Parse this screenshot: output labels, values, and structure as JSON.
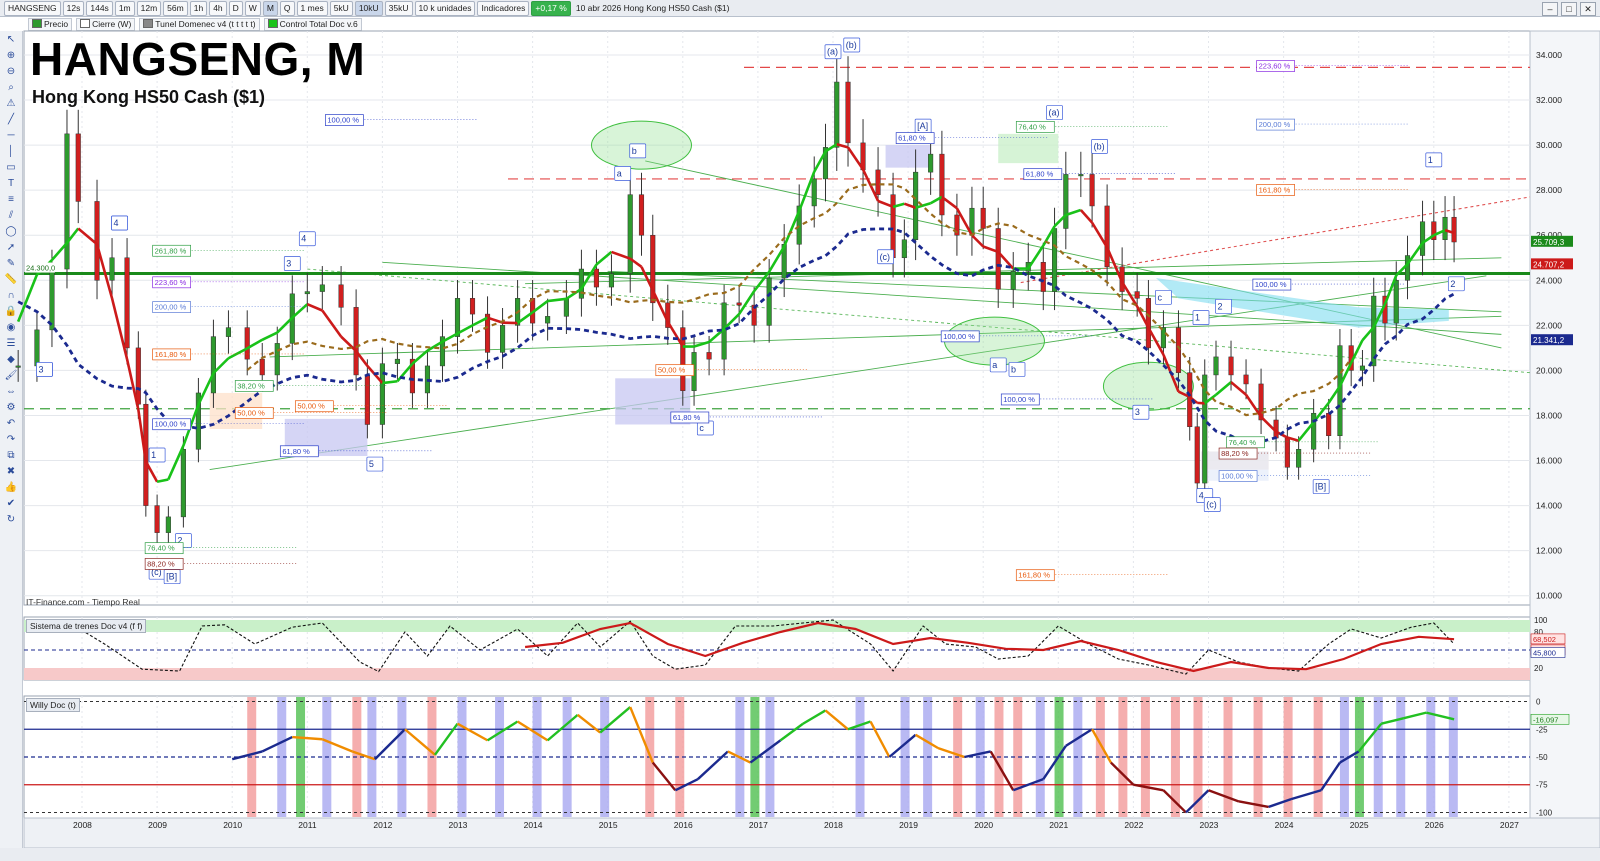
{
  "toolbar": {
    "symbol": "HANGSENG",
    "intervals": [
      "12s",
      "144s",
      "1m",
      "12m",
      "56m",
      "1h",
      "4h",
      "D",
      "W",
      "M",
      "Q"
    ],
    "active_interval": "M",
    "range": "1 mes",
    "units": [
      "5kU",
      "10kU",
      "35kU"
    ],
    "active_unit": "10kU",
    "unit_select": "10 k unidades",
    "indicators_label": "Indicadores",
    "change": "+0,17 %",
    "info": "10 abr 2026 Hong Kong HS50 Cash ($1)"
  },
  "legend": [
    "Precio",
    "Cierre (W)",
    "Tunel Domenec v4 (t t t t t)",
    "Control Total Doc v.6"
  ],
  "header": {
    "title": "HANGSENG, M",
    "subtitle": "Hong Kong HS50 Cash ($1)",
    "footer": "IT-Finance.com - Tiempo Real"
  },
  "panels": {
    "osc1_name": "Sistema de trenes Doc v4 (f f)",
    "osc2_name": "Willy Doc (t)"
  },
  "colors": {
    "up_candle": "#2e9a2e",
    "down_candle": "#d11f1f",
    "bull_line": "#19c219",
    "bear_line": "#cc1a1a",
    "blue_dash": "#1b2a8f",
    "brown_dash": "#9a6b1c",
    "main_level": "#1a8a1a",
    "osc_red_zone": "#f7c9c9",
    "osc_green_zone": "#c9f0c9",
    "willy_red": "#f29a9a",
    "willy_blue": "#a7a7f0",
    "willy_green": "#4fbf4f"
  },
  "chart_data": {
    "type": "candlestick",
    "title": "HANGSENG, M",
    "subtitle": "Hong Kong HS50 Cash ($1)",
    "xlabel": "",
    "ylabel": "",
    "ylim": [
      9300,
      35200
    ],
    "x_ticks": [
      2008,
      2009,
      2010,
      2011,
      2012,
      2013,
      2014,
      2015,
      2016,
      2017,
      2018,
      2019,
      2020,
      2021,
      2022,
      2023,
      2024,
      2025,
      2026,
      2027
    ],
    "y_ticks": [
      10000,
      12000,
      14000,
      16000,
      18000,
      20000,
      22000,
      24000,
      26000,
      28000,
      30000,
      32000,
      34000
    ],
    "y_tick_labels": [
      "10.000",
      "12.000",
      "14.000",
      "16.000",
      "18.000",
      "20.000",
      "22.000",
      "24.000",
      "26.000",
      "28.000",
      "30.000",
      "32.000",
      "34.000"
    ],
    "price_close_points": [
      [
        2007.15,
        20200
      ],
      [
        2007.4,
        21800
      ],
      [
        2007.6,
        24500
      ],
      [
        2007.8,
        30500
      ],
      [
        2007.95,
        27500
      ],
      [
        2008.2,
        24000
      ],
      [
        2008.4,
        25000
      ],
      [
        2008.6,
        21000
      ],
      [
        2008.75,
        18500
      ],
      [
        2008.85,
        14000
      ],
      [
        2009.0,
        12800
      ],
      [
        2009.15,
        13500
      ],
      [
        2009.35,
        16500
      ],
      [
        2009.55,
        19000
      ],
      [
        2009.75,
        21500
      ],
      [
        2009.95,
        21900
      ],
      [
        2010.2,
        20500
      ],
      [
        2010.4,
        19800
      ],
      [
        2010.6,
        21200
      ],
      [
        2010.8,
        23400
      ],
      [
        2011.0,
        23500
      ],
      [
        2011.2,
        23800
      ],
      [
        2011.45,
        22800
      ],
      [
        2011.65,
        19800
      ],
      [
        2011.8,
        17600
      ],
      [
        2012.0,
        20300
      ],
      [
        2012.2,
        20500
      ],
      [
        2012.4,
        19000
      ],
      [
        2012.6,
        20200
      ],
      [
        2012.8,
        21500
      ],
      [
        2013.0,
        23200
      ],
      [
        2013.2,
        22500
      ],
      [
        2013.4,
        20800
      ],
      [
        2013.6,
        22000
      ],
      [
        2013.8,
        23200
      ],
      [
        2014.0,
        22100
      ],
      [
        2014.2,
        22400
      ],
      [
        2014.45,
        23200
      ],
      [
        2014.65,
        24500
      ],
      [
        2014.85,
        23700
      ],
      [
        2015.05,
        24300
      ],
      [
        2015.3,
        27800
      ],
      [
        2015.45,
        26000
      ],
      [
        2015.6,
        23000
      ],
      [
        2015.8,
        21900
      ],
      [
        2016.0,
        19100
      ],
      [
        2016.15,
        20800
      ],
      [
        2016.35,
        20500
      ],
      [
        2016.55,
        23000
      ],
      [
        2016.75,
        22900
      ],
      [
        2016.95,
        22000
      ],
      [
        2017.15,
        24100
      ],
      [
        2017.35,
        25600
      ],
      [
        2017.55,
        27300
      ],
      [
        2017.75,
        28500
      ],
      [
        2017.9,
        29900
      ],
      [
        2018.05,
        32800
      ],
      [
        2018.2,
        30100
      ],
      [
        2018.4,
        28900
      ],
      [
        2018.6,
        27800
      ],
      [
        2018.8,
        25000
      ],
      [
        2018.95,
        25800
      ],
      [
        2019.1,
        28800
      ],
      [
        2019.3,
        29600
      ],
      [
        2019.45,
        26900
      ],
      [
        2019.65,
        26000
      ],
      [
        2019.85,
        27200
      ],
      [
        2020.0,
        26300
      ],
      [
        2020.2,
        23600
      ],
      [
        2020.4,
        24400
      ],
      [
        2020.6,
        24800
      ],
      [
        2020.8,
        23500
      ],
      [
        2020.95,
        26300
      ],
      [
        2021.1,
        28700
      ],
      [
        2021.3,
        28700
      ],
      [
        2021.45,
        27300
      ],
      [
        2021.65,
        24600
      ],
      [
        2021.85,
        23500
      ],
      [
        2022.05,
        23200
      ],
      [
        2022.2,
        21000
      ],
      [
        2022.4,
        21900
      ],
      [
        2022.6,
        19900
      ],
      [
        2022.75,
        17500
      ],
      [
        2022.85,
        15000
      ],
      [
        2022.95,
        19800
      ],
      [
        2023.1,
        20600
      ],
      [
        2023.3,
        19800
      ],
      [
        2023.5,
        19400
      ],
      [
        2023.7,
        17800
      ],
      [
        2023.9,
        17000
      ],
      [
        2024.05,
        15700
      ],
      [
        2024.2,
        16500
      ],
      [
        2024.4,
        18100
      ],
      [
        2024.6,
        17100
      ],
      [
        2024.75,
        21100
      ],
      [
        2024.9,
        20000
      ],
      [
        2025.05,
        20200
      ],
      [
        2025.2,
        23300
      ],
      [
        2025.35,
        22100
      ],
      [
        2025.5,
        24000
      ],
      [
        2025.65,
        25100
      ],
      [
        2025.85,
        26600
      ],
      [
        2026.0,
        25800
      ],
      [
        2026.15,
        26800
      ],
      [
        2026.27,
        25700
      ]
    ],
    "price_labels": [
      "25.709,3",
      "24.707,2",
      "21.341,2",
      "24.300,0"
    ],
    "osc1": {
      "name": "Sistema de trenes Doc v4 (f f)",
      "ylim": [
        0,
        105
      ],
      "y_ticks": [
        100,
        80,
        50,
        20
      ],
      "y_tick_labels": [
        "100",
        "80",
        "50",
        "20"
      ],
      "value_labels": [
        "68,502",
        "50,211",
        "45,800"
      ],
      "series": [
        {
          "name": "fast",
          "values": [
            [
              2007.3,
              88
            ],
            [
              2007.8,
              98
            ],
            [
              2008.3,
              60
            ],
            [
              2008.8,
              18
            ],
            [
              2009.3,
              15
            ],
            [
              2009.6,
              90
            ],
            [
              2009.9,
              92
            ],
            [
              2010.3,
              60
            ],
            [
              2010.8,
              88
            ],
            [
              2011.2,
              95
            ],
            [
              2011.7,
              30
            ],
            [
              2011.95,
              14
            ],
            [
              2012.3,
              80
            ],
            [
              2012.6,
              40
            ],
            [
              2012.9,
              90
            ],
            [
              2013.3,
              50
            ],
            [
              2013.8,
              85
            ],
            [
              2014.2,
              40
            ],
            [
              2014.6,
              95
            ],
            [
              2014.9,
              55
            ],
            [
              2015.3,
              98
            ],
            [
              2015.6,
              40
            ],
            [
              2015.9,
              18
            ],
            [
              2016.3,
              25
            ],
            [
              2016.7,
              90
            ],
            [
              2017.2,
              90
            ],
            [
              2017.6,
              95
            ],
            [
              2018.0,
              100
            ],
            [
              2018.5,
              60
            ],
            [
              2018.8,
              15
            ],
            [
              2019.2,
              90
            ],
            [
              2019.5,
              60
            ],
            [
              2019.9,
              55
            ],
            [
              2020.2,
              35
            ],
            [
              2020.6,
              40
            ],
            [
              2021.0,
              90
            ],
            [
              2021.4,
              60
            ],
            [
              2021.8,
              35
            ],
            [
              2022.2,
              25
            ],
            [
              2022.7,
              10
            ],
            [
              2023.0,
              50
            ],
            [
              2023.4,
              30
            ],
            [
              2023.8,
              20
            ],
            [
              2024.2,
              15
            ],
            [
              2024.6,
              60
            ],
            [
              2024.9,
              85
            ],
            [
              2025.3,
              70
            ],
            [
              2025.7,
              88
            ],
            [
              2026.0,
              95
            ],
            [
              2026.27,
              60
            ]
          ]
        },
        {
          "name": "slow",
          "values": [
            [
              2013.9,
              55
            ],
            [
              2014.4,
              62
            ],
            [
              2014.9,
              85
            ],
            [
              2015.3,
              95
            ],
            [
              2015.8,
              60
            ],
            [
              2016.3,
              40
            ],
            [
              2016.8,
              62
            ],
            [
              2017.3,
              80
            ],
            [
              2017.8,
              95
            ],
            [
              2018.3,
              85
            ],
            [
              2018.8,
              60
            ],
            [
              2019.3,
              70
            ],
            [
              2019.8,
              62
            ],
            [
              2020.3,
              52
            ],
            [
              2020.8,
              50
            ],
            [
              2021.3,
              65
            ],
            [
              2021.8,
              50
            ],
            [
              2022.3,
              30
            ],
            [
              2022.8,
              15
            ],
            [
              2023.3,
              30
            ],
            [
              2023.8,
              20
            ],
            [
              2024.3,
              18
            ],
            [
              2024.8,
              35
            ],
            [
              2025.3,
              60
            ],
            [
              2025.8,
              72
            ],
            [
              2026.27,
              68
            ]
          ]
        }
      ]
    },
    "osc2": {
      "name": "Willy Doc (t)",
      "ylim": [
        -105,
        5
      ],
      "y_ticks": [
        0,
        -25,
        -50,
        -75,
        -100
      ],
      "y_tick_labels": [
        "0",
        "-25",
        "-50",
        "-75",
        "-100"
      ],
      "value_label": "-16,097",
      "series": [
        {
          "name": "willy",
          "values": [
            [
              2010.0,
              -52
            ],
            [
              2010.4,
              -45
            ],
            [
              2010.8,
              -32
            ],
            [
              2011.2,
              -34
            ],
            [
              2011.6,
              -45
            ],
            [
              2011.9,
              -52
            ],
            [
              2012.3,
              -25
            ],
            [
              2012.7,
              -48
            ],
            [
              2013.0,
              -20
            ],
            [
              2013.4,
              -35
            ],
            [
              2013.8,
              -18
            ],
            [
              2014.2,
              -35
            ],
            [
              2014.6,
              -12
            ],
            [
              2014.9,
              -28
            ],
            [
              2015.3,
              -5
            ],
            [
              2015.6,
              -55
            ],
            [
              2015.9,
              -80
            ],
            [
              2016.2,
              -70
            ],
            [
              2016.6,
              -45
            ],
            [
              2016.9,
              -55
            ],
            [
              2017.3,
              -35
            ],
            [
              2017.6,
              -20
            ],
            [
              2017.9,
              -8
            ],
            [
              2018.2,
              -25
            ],
            [
              2018.5,
              -18
            ],
            [
              2018.75,
              -50
            ],
            [
              2019.1,
              -30
            ],
            [
              2019.4,
              -42
            ],
            [
              2019.75,
              -50
            ],
            [
              2020.1,
              -45
            ],
            [
              2020.4,
              -80
            ],
            [
              2020.8,
              -70
            ],
            [
              2021.1,
              -40
            ],
            [
              2021.45,
              -25
            ],
            [
              2021.7,
              -55
            ],
            [
              2022.0,
              -75
            ],
            [
              2022.4,
              -80
            ],
            [
              2022.7,
              -100
            ],
            [
              2023.0,
              -80
            ],
            [
              2023.4,
              -90
            ],
            [
              2023.8,
              -95
            ],
            [
              2024.1,
              -88
            ],
            [
              2024.5,
              -80
            ],
            [
              2024.75,
              -55
            ],
            [
              2025.0,
              -45
            ],
            [
              2025.3,
              -20
            ],
            [
              2025.6,
              -15
            ],
            [
              2025.9,
              -10
            ],
            [
              2026.27,
              -16
            ]
          ]
        }
      ]
    },
    "annotations": {
      "waves": [
        "(a)",
        "(b)",
        "(c)",
        "[B]",
        "1",
        "2",
        "3",
        "4",
        "5",
        "a",
        "b",
        "c",
        "(a)",
        "(b)",
        "(c)",
        "[A]",
        "a",
        "b",
        "(a)",
        "(b)",
        "c",
        "1",
        "2",
        "3",
        "4",
        "(c)",
        "[B]",
        "1",
        "2",
        "3",
        "4"
      ],
      "fib_labels": [
        "100,00 %",
        "261,80 %",
        "223,60 %",
        "200,00 %",
        "161,80 %",
        "100,00 %",
        "38,20 %",
        "50,00 %",
        "61,80 %",
        "50,00 %",
        "61,80 %",
        "50,00 %",
        "61,80 %",
        "76,40 %",
        "61,80 %",
        "100,00 %",
        "100,00 %",
        "223,60 %",
        "200,00 %",
        "161,80 %",
        "100,00 %",
        "76,40 %",
        "88,20 %",
        "100,00 %",
        "88,20 %",
        "76,40 %",
        "161,80 %"
      ],
      "level_label": "24.300,0"
    }
  }
}
